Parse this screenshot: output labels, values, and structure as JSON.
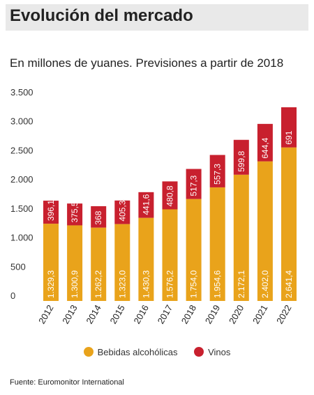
{
  "header": {
    "title": "Evolución del mercado",
    "subtitle": "En millones de yuanes. Previsiones a partir de 2018"
  },
  "legend": {
    "items": [
      {
        "label": "Bebidas alcohólicas",
        "color": "#e9a31b"
      },
      {
        "label": "Vinos",
        "color": "#c8202e"
      }
    ]
  },
  "footer": {
    "source": "Fuente: Euromonitor International"
  },
  "chart_data": {
    "type": "bar",
    "stacked": true,
    "categories": [
      "2012",
      "2013",
      "2014",
      "2015",
      "2016",
      "2017",
      "2018",
      "2019",
      "2020",
      "2021",
      "2022"
    ],
    "series": [
      {
        "name": "Bebidas alcohólicas",
        "color": "#e9a31b",
        "values": [
          1329.3,
          1300.9,
          1262.2,
          1323.0,
          1430.3,
          1576.2,
          1754.0,
          1954.6,
          2172.1,
          2402.0,
          2641.4
        ],
        "labels": [
          "1.329,3",
          "1.300,9",
          "1.262,2",
          "1.323,0",
          "1.430,3",
          "1.576,2",
          "1.754,0",
          "1.954,6",
          "2.172,1",
          "2.402,0",
          "2.641,4"
        ]
      },
      {
        "name": "Vinos",
        "color": "#c8202e",
        "values": [
          396.1,
          375.5,
          368,
          405.3,
          441.6,
          480.8,
          517.3,
          557.3,
          599.8,
          644.4,
          691
        ],
        "labels": [
          "396,1",
          "375,5",
          "368",
          "405,3",
          "441,6",
          "480,8",
          "517,3",
          "557,3",
          "599,8",
          "644,4",
          "691"
        ]
      }
    ],
    "y_ticks": [
      {
        "value": 0,
        "label": "0"
      },
      {
        "value": 500,
        "label": "500"
      },
      {
        "value": 1000,
        "label": "1.000"
      },
      {
        "value": 1500,
        "label": "1.500"
      },
      {
        "value": 2000,
        "label": "2.000"
      },
      {
        "value": 2500,
        "label": "2.500"
      },
      {
        "value": 3000,
        "label": "3.000"
      },
      {
        "value": 3500,
        "label": "3.500"
      }
    ],
    "ylim": [
      0,
      3500
    ],
    "grid": false,
    "legend_position": "bottom"
  }
}
